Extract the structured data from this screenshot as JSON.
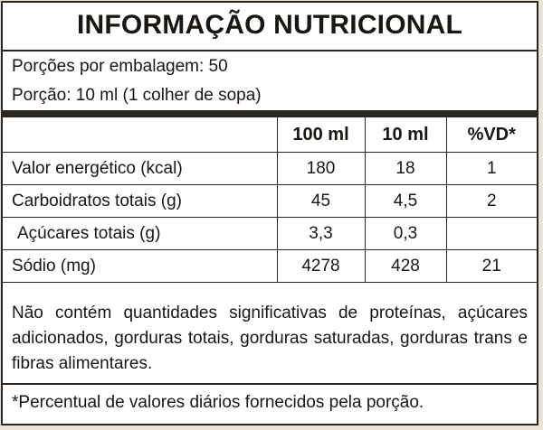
{
  "title": "INFORMAÇÃO NUTRICIONAL",
  "servings_per_package": "Porções por embalagem: 50",
  "serving_size": "Porção: 10 ml (1 colher de sopa)",
  "table": {
    "headers": [
      "",
      "100 ml",
      "10 ml",
      "%VD*"
    ],
    "rows": [
      {
        "label": "Valor energético (kcal)",
        "per100": "180",
        "perServing": "18",
        "vd": "1"
      },
      {
        "label": "Carboidratos totais (g)",
        "per100": "45",
        "perServing": "4,5",
        "vd": "2"
      },
      {
        "label": "Açúcares totais (g)",
        "per100": "3,3",
        "perServing": "0,3",
        "vd": ""
      },
      {
        "label": "Sódio (mg)",
        "per100": "4278",
        "perServing": "428",
        "vd": "21"
      }
    ]
  },
  "note": "Não contém quantidades significativas de proteínas, açúcares adicionados, gorduras totais, gorduras saturadas, gorduras trans e fibras alimentares.",
  "footnote": "*Percentual de valores diários fornecidos pela porção."
}
